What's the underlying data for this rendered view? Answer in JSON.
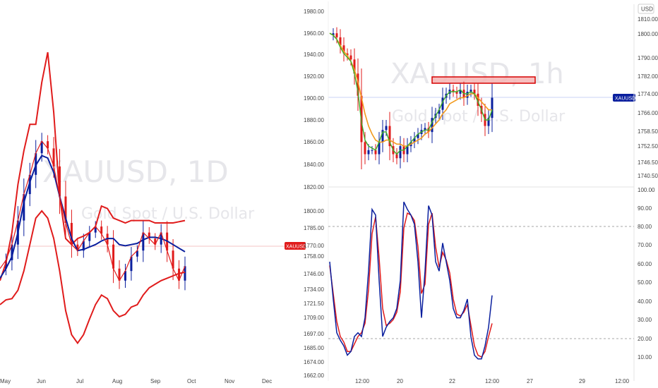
{
  "colors": {
    "red": "#e01b1b",
    "blue": "#0a1f9e",
    "orange": "#f29a1e",
    "green": "#3fae2a",
    "price_line": "#c9d3f5",
    "resistance_fill": "#f6b4b4",
    "resistance_stroke": "#d60000"
  },
  "chart_data": [
    {
      "type": "line",
      "name": "daily-chart",
      "watermark": "XAUUSD, 1D",
      "watermark_sub": "Gold Spot / U.S. Dollar",
      "x_ticks": [
        "May",
        "Jun",
        "Jul",
        "Aug",
        "Sep",
        "Oct",
        "Nov",
        "Dec"
      ],
      "price_badge": "XAUUSD",
      "x": [
        0,
        4,
        8,
        12,
        16,
        20,
        24,
        28,
        32,
        36,
        40,
        44,
        48,
        52,
        56,
        60,
        64,
        68,
        72,
        76,
        80,
        84,
        88,
        92,
        96,
        100,
        104,
        108,
        112,
        116,
        120,
        124
      ],
      "series": [
        {
          "role": "close",
          "values": [
            1770,
            1777,
            1790,
            1810,
            1832,
            1848,
            1866,
            1876,
            1870,
            1855,
            1830,
            1808,
            1790,
            1785,
            1793,
            1800,
            1805,
            1799,
            1790,
            1770,
            1760,
            1768,
            1780,
            1785,
            1800,
            1795,
            1790,
            1800,
            1785,
            1770,
            1760,
            1772
          ]
        },
        {
          "role": "upper-band",
          "values": [
            1760,
            1775,
            1800,
            1840,
            1868,
            1890,
            1890,
            1925,
            1950,
            1900,
            1830,
            1795,
            1790,
            1795,
            1797,
            1800,
            1805,
            1822,
            1820,
            1812,
            1810,
            1808,
            1810,
            1810,
            1810,
            1810,
            1808,
            1808,
            1808,
            1808,
            1809,
            1810
          ]
        },
        {
          "role": "middle-band",
          "values": [
            1762,
            1770,
            1780,
            1800,
            1825,
            1842,
            1856,
            1864,
            1862,
            1850,
            1830,
            1812,
            1795,
            1785,
            1786,
            1788,
            1790,
            1793,
            1795,
            1795,
            1790,
            1789,
            1790,
            1791,
            1794,
            1796,
            1796,
            1795,
            1793,
            1790,
            1787,
            1784
          ]
        },
        {
          "role": "lower-band",
          "values": [
            1740,
            1744,
            1745,
            1752,
            1768,
            1790,
            1812,
            1818,
            1812,
            1795,
            1768,
            1735,
            1715,
            1708,
            1715,
            1728,
            1740,
            1748,
            1745,
            1735,
            1730,
            1732,
            1738,
            1740,
            1748,
            1754,
            1757,
            1760,
            1762,
            1764,
            1766,
            1767
          ]
        }
      ],
      "y_range": [
        1700,
        1970
      ]
    },
    {
      "type": "line",
      "name": "hourly-chart",
      "watermark": "XAUUSD, 1h",
      "watermark_sub": "Gold Spot / U.S. Dollar",
      "left_axis_ticks": [
        "1980.00",
        "1960.00",
        "1940.00",
        "1920.00",
        "1900.00",
        "1880.00",
        "1860.00",
        "1840.00",
        "1820.00"
      ],
      "right_axis_ticks": [
        "1810.00",
        "1800.00",
        "1790.00",
        "1782.00",
        "1774.00",
        "1766.00",
        "1758.50",
        "1752.50",
        "1746.50",
        "1740.50"
      ],
      "currency": "USD",
      "price_badge": "XAUUSD",
      "x": [
        0,
        4,
        8,
        12,
        16,
        20,
        24,
        28,
        32,
        36,
        40,
        44,
        48,
        52,
        56,
        60,
        64,
        68,
        72,
        76,
        80,
        84,
        88,
        92,
        96,
        100,
        104,
        108,
        112,
        116,
        120,
        124,
        128,
        132,
        136,
        140,
        144,
        148,
        152,
        156,
        160,
        164,
        168,
        172,
        176,
        180,
        184
      ],
      "series": [
        {
          "role": "price",
          "values": [
            1805,
            1806,
            1804,
            1800,
            1796,
            1795,
            1793,
            1786,
            1775,
            1752,
            1746,
            1748,
            1748,
            1746,
            1752,
            1758,
            1760,
            1750,
            1746,
            1744,
            1750,
            1746,
            1750,
            1752,
            1754,
            1756,
            1758,
            1759,
            1757,
            1764,
            1766,
            1768,
            1774,
            1776,
            1778,
            1777,
            1776,
            1778,
            1774,
            1777,
            1778,
            1776,
            1770,
            1766,
            1760,
            1764,
            1774
          ]
        },
        {
          "role": "orange-ma",
          "values": [
            1806,
            1805,
            1803,
            1800,
            1797,
            1795,
            1792,
            1788,
            1782,
            1774,
            1766,
            1760,
            1756,
            1753,
            1752,
            1752,
            1753,
            1753,
            1752,
            1751,
            1751,
            1750,
            1750,
            1751,
            1752,
            1753,
            1754,
            1756,
            1757,
            1759,
            1761,
            1763,
            1766,
            1768,
            1771,
            1772,
            1773,
            1774,
            1774,
            1775,
            1776,
            1776,
            1774,
            1772,
            1770,
            1768,
            1768
          ]
        },
        {
          "role": "green-ma",
          "values": [
            1806,
            1805,
            1803,
            1799,
            1796,
            1794,
            1792,
            1786,
            1777,
            1762,
            1753,
            1750,
            1749,
            1748,
            1752,
            1757,
            1757,
            1752,
            1748,
            1746,
            1748,
            1748,
            1750,
            1752,
            1754,
            1756,
            1757,
            1758,
            1758,
            1762,
            1765,
            1768,
            1772,
            1775,
            1777,
            1777,
            1777,
            1778,
            1776,
            1776,
            1777,
            1776,
            1772,
            1768,
            1763,
            1763,
            1768
          ]
        }
      ],
      "resistance_zone": [
        1778,
        1782
      ],
      "current_price": 1774,
      "y_range": [
        1735,
        1812
      ]
    },
    {
      "type": "line",
      "name": "stochastic",
      "x_ticks": [
        "12:00",
        "20",
        "22",
        "12:00",
        "27",
        "29",
        "12:00"
      ],
      "left_axis_ticks": [
        "1800.00",
        "1785.00",
        "1770.00",
        "1758.00",
        "1746.00",
        "1734.00",
        "1721.50",
        "1709.00",
        "1697.00",
        "1685.00",
        "1674.00",
        "1662.00"
      ],
      "right_axis_ticks": [
        "100.00",
        "90.00",
        "80.00",
        "70.00",
        "60.00",
        "50.00",
        "40.00",
        "30.00",
        "20.00",
        "10.00"
      ],
      "levels": [
        80,
        20
      ],
      "x": [
        0,
        4,
        8,
        12,
        16,
        20,
        24,
        28,
        32,
        36,
        40,
        44,
        48,
        52,
        56,
        60,
        64,
        68,
        72,
        76,
        80,
        84,
        88,
        92,
        96,
        100,
        104,
        108,
        112,
        116,
        120,
        124,
        128,
        132,
        136,
        140,
        144,
        148,
        152,
        156,
        160,
        164,
        168,
        172,
        176,
        180,
        184
      ],
      "series": [
        {
          "role": "percent-k",
          "values": [
            60,
            40,
            22,
            18,
            15,
            10,
            12,
            20,
            22,
            20,
            30,
            55,
            88,
            85,
            50,
            20,
            25,
            28,
            30,
            35,
            50,
            92,
            88,
            85,
            80,
            60,
            30,
            55,
            90,
            85,
            60,
            55,
            70,
            60,
            50,
            35,
            30,
            30,
            34,
            40,
            20,
            10,
            8,
            8,
            15,
            25,
            42
          ]
        },
        {
          "role": "percent-d",
          "values": [
            58,
            43,
            28,
            20,
            17,
            12,
            12,
            16,
            20,
            22,
            27,
            45,
            75,
            84,
            62,
            35,
            26,
            27,
            29,
            33,
            44,
            78,
            86,
            85,
            82,
            68,
            43,
            48,
            80,
            86,
            68,
            57,
            65,
            61,
            54,
            40,
            32,
            31,
            33,
            37,
            26,
            15,
            10,
            9,
            12,
            20,
            27
          ]
        }
      ],
      "y_range": [
        0,
        100
      ]
    }
  ]
}
